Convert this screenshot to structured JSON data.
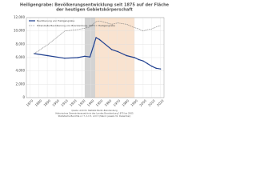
{
  "chart_data": {
    "type": "line",
    "title": [
      "Heiligengrabe: Bevölkerungsentwicklung seit 1875 auf der Fläche",
      "der heutigen Gebietskörperschaft"
    ],
    "x": [
      1875,
      1890,
      1910,
      1925,
      1933,
      1939,
      1946,
      1950,
      1964,
      1971,
      1981,
      1990,
      1995,
      2000,
      2005,
      2010,
      2015,
      2020
    ],
    "series": [
      {
        "name": "Bevölkerung von Heiligengrabe",
        "color": "#1f3f8f",
        "dash": false,
        "values": [
          6600,
          6300,
          5900,
          6000,
          6200,
          6100,
          9000,
          8700,
          7200,
          6900,
          6300,
          6000,
          5700,
          5500,
          5100,
          4700,
          4400,
          4300
        ]
      },
      {
        "name": "Potenzielle Bevölkerung von Brandenburg, 1875 = Heiligengrabe",
        "color": "#777777",
        "dash": true,
        "values": [
          6600,
          7900,
          10000,
          10200,
          10400,
          10600,
          11400,
          11500,
          11000,
          11200,
          11000,
          10500,
          10300,
          10000,
          10200,
          10300,
          10600,
          10800
        ]
      }
    ],
    "shaded_periods": [
      {
        "from": 1933,
        "to": 1945,
        "color": "#c8c8c8"
      },
      {
        "from": 1945,
        "to": 1990,
        "color": "#f7dcc4"
      }
    ],
    "xlim": [
      1866,
      2024
    ],
    "xticks": [
      1870,
      1880,
      1890,
      1900,
      1910,
      1920,
      1930,
      1940,
      1950,
      1960,
      1970,
      1980,
      1990,
      2000,
      2010,
      2020
    ],
    "ylim": [
      0,
      12000
    ],
    "yticks": [
      0,
      {
        "value": 2000,
        "label": "2,000"
      },
      {
        "value": 4000,
        "label": "4,000"
      },
      {
        "value": 6000,
        "label": "6,000"
      },
      {
        "value": 8000,
        "label": "8,000"
      },
      {
        "value": 10000,
        "label": "10,000"
      },
      {
        "value": 12000,
        "label": "12,000"
      }
    ],
    "grid": true,
    "legend": "top-left",
    "footer": [
      "Quelle: Amt für Statistik Berlin-Brandenburg",
      "Historisches Gemeindeverzeichnis des Landes Brandenburg 1875 bis 2005",
      "Statistische Berichte A I 7, A II 3, A III 3 (Stand: jeweils 31. Dezember)"
    ]
  }
}
